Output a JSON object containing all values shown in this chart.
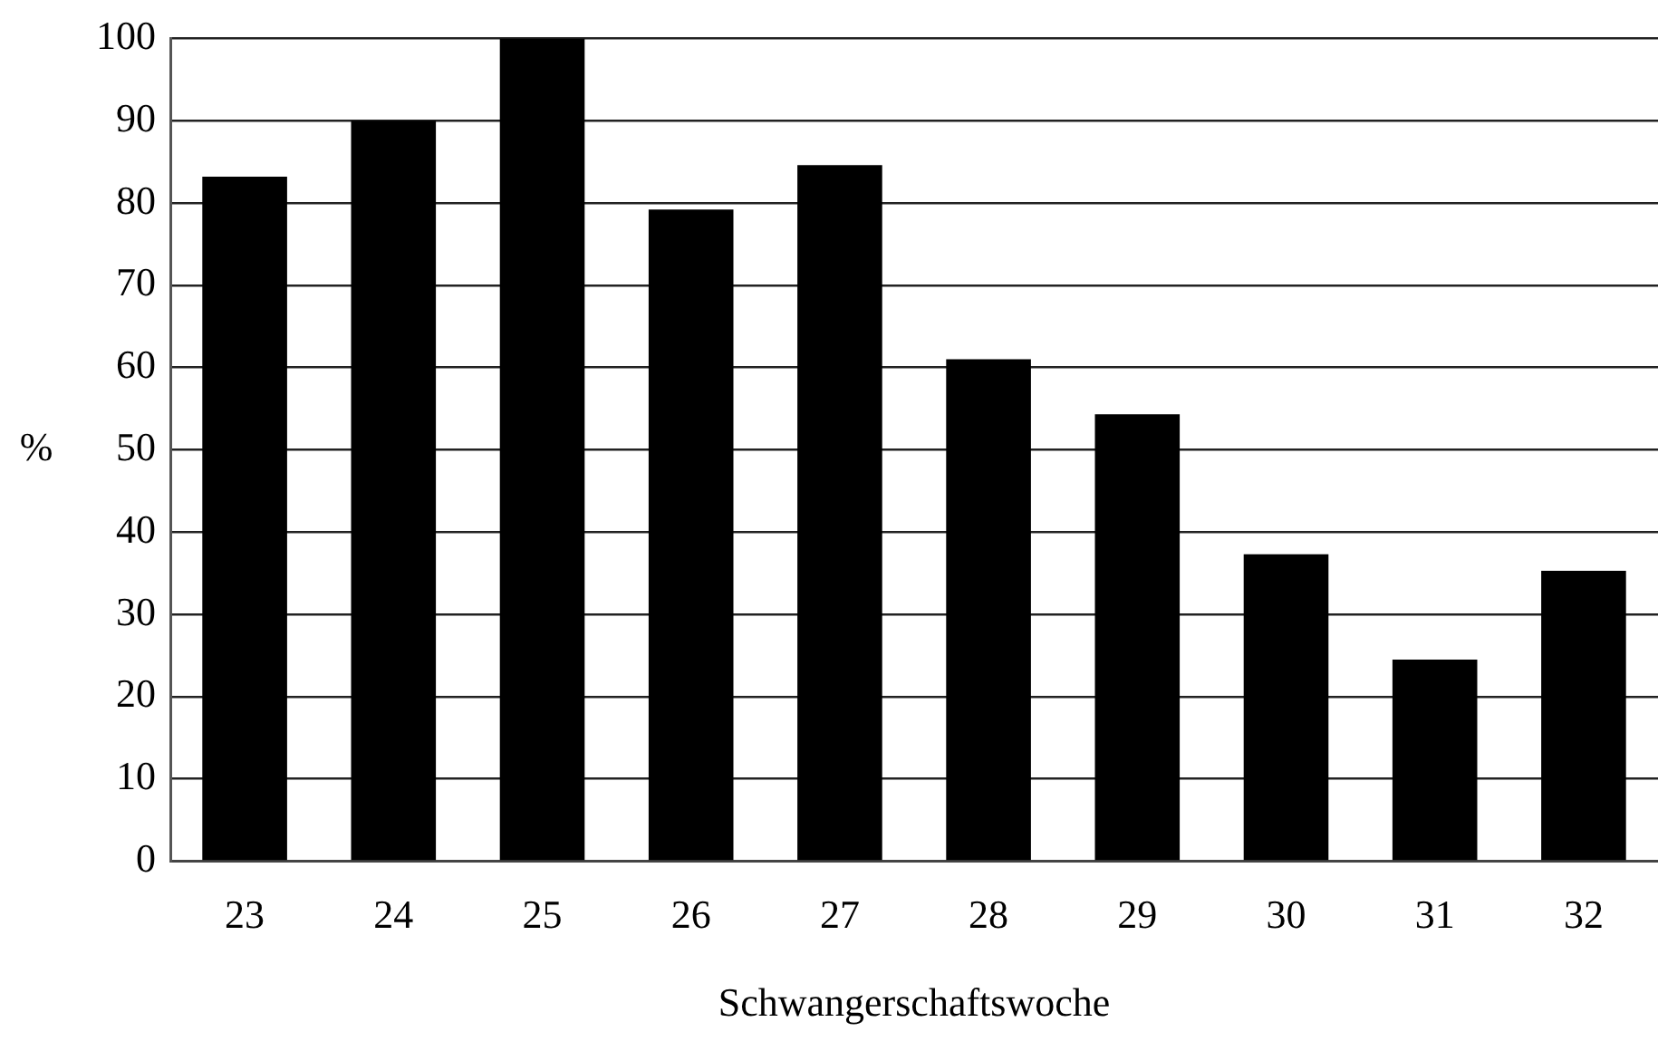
{
  "chart_data": {
    "type": "bar",
    "xlabel": "Schwangerschaftswoche",
    "ylabel": "%",
    "categories": [
      "23",
      "24",
      "25",
      "26",
      "27",
      "28",
      "29",
      "30",
      "31",
      "32"
    ],
    "values": [
      83.2,
      90,
      100,
      79.2,
      84.6,
      61,
      54.3,
      37.3,
      24.5,
      35.3
    ],
    "color": "#000000",
    "ylim": [
      0,
      100
    ],
    "yticks": [
      0,
      10,
      20,
      30,
      40,
      50,
      60,
      70,
      80,
      90,
      100
    ],
    "grid": "y",
    "legend": false
  }
}
